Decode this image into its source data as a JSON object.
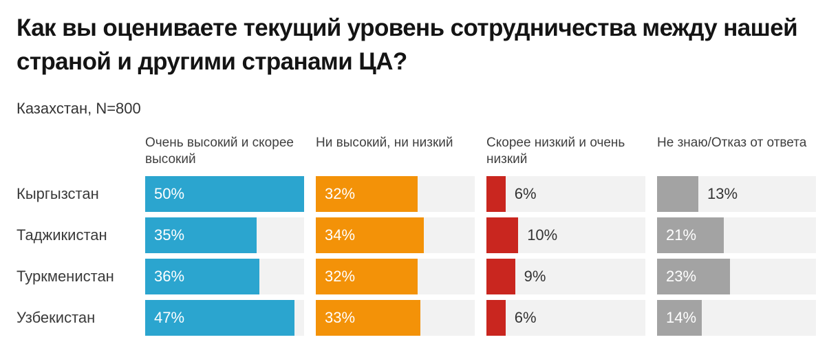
{
  "page": {
    "title": "Как вы оцениваете текущий уровень сотрудничества между нашей страной и другими странами ЦА?",
    "subtitle": "Казахстан, N=800"
  },
  "chart_data": {
    "type": "bar",
    "orientation": "horizontal",
    "title": "Как вы оцениваете текущий уровень сотрудничества между нашей страной и другими странами ЦА?",
    "subtitle": "Казахстан, N=800",
    "categories": [
      "Кыргызстан",
      "Таджикистан",
      "Туркменистан",
      "Узбекистан"
    ],
    "series": [
      {
        "name": "Очень высокий и скорее высокий",
        "color": "#2BA5CF",
        "values": [
          50,
          35,
          36,
          47
        ]
      },
      {
        "name": "Ни высокий, ни низкий",
        "color": "#F39208",
        "values": [
          32,
          34,
          32,
          33
        ]
      },
      {
        "name": "Скорее низкий и очень низкий",
        "color": "#C9261F",
        "values": [
          6,
          10,
          9,
          6
        ]
      },
      {
        "name": "Не знаю/Отказ от ответа",
        "color": "#A3A3A3",
        "values": [
          13,
          21,
          23,
          14
        ]
      }
    ],
    "value_suffix": "%",
    "xlim": [
      0,
      50
    ],
    "grid": false,
    "legend_position": "column-headers-top",
    "track_color": "#f2f2f2",
    "label_inside_min": 14
  }
}
